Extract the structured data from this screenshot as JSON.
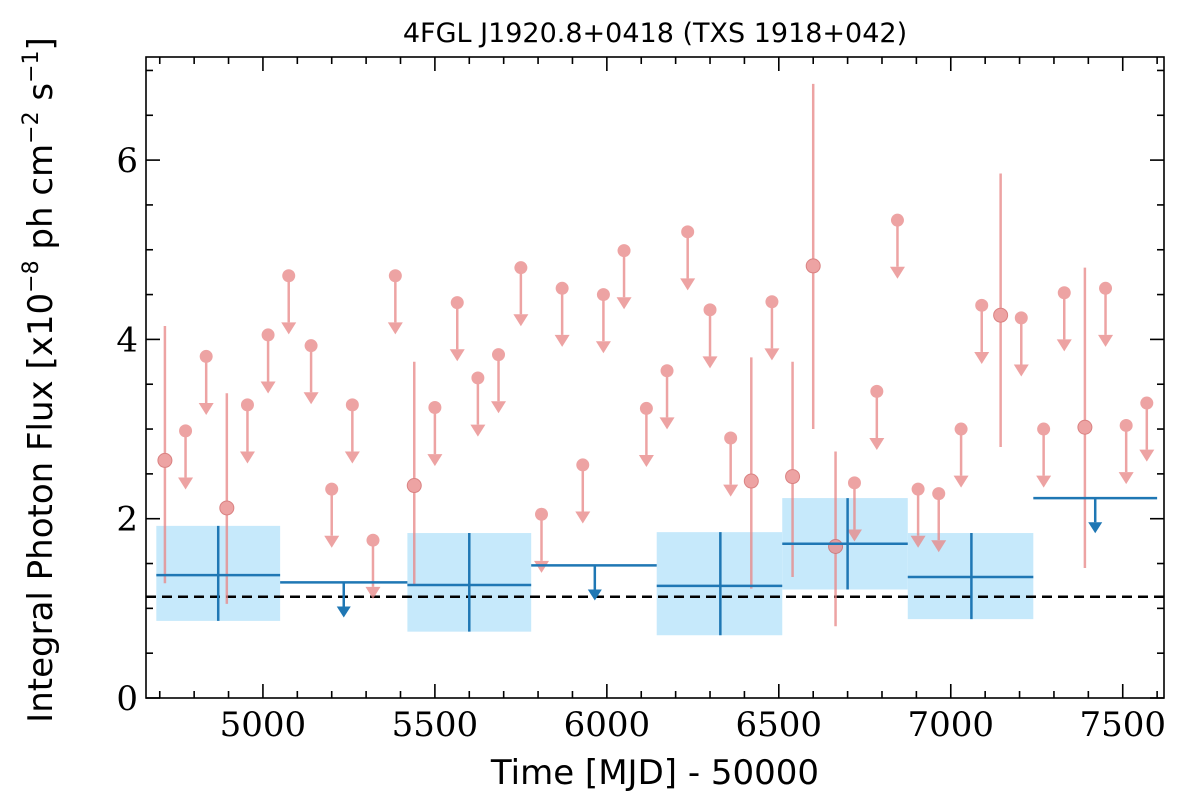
{
  "chart_data": {
    "type": "scatter",
    "title": "4FGL J1920.8+0418 (TXS 1918+042)",
    "xlabel": "Time [MJD] - 50000",
    "ylabel": "Integral Photon Flux [x10^-8 ph cm^-2 s^-1]",
    "ylabel_parts": {
      "pre": "Integral Photon Flux [x10",
      "exp1": "−8",
      "mid": " ph cm",
      "exp2": "−2",
      "mid2": " s",
      "exp3": "−1",
      "post": "]"
    },
    "xlim": [
      4660,
      7620
    ],
    "ylim": [
      0,
      7.15
    ],
    "xticks": [
      5000,
      5500,
      6000,
      6500,
      7000,
      7500
    ],
    "xtick_labels": [
      "5000",
      "5500",
      "6000",
      "6500",
      "7000",
      "7500"
    ],
    "yticks": [
      0,
      2,
      4,
      6
    ],
    "ytick_labels": [
      "0",
      "2",
      "4",
      "6"
    ],
    "mean_flux": 1.13,
    "colors": {
      "short_bins": "#e88a8a",
      "long_bins": "#1f77b4",
      "long_bin_error_box": "#c6e9fb",
      "mean_line": "#000000"
    },
    "short_bin_detections": [
      {
        "x": 4715,
        "y": 2.65,
        "ylo": 1.28,
        "yhi": 4.15
      },
      {
        "x": 4895,
        "y": 2.12,
        "ylo": 1.05,
        "yhi": 3.4
      },
      {
        "x": 5440,
        "y": 2.37,
        "ylo": 1.25,
        "yhi": 3.75
      },
      {
        "x": 6420,
        "y": 2.42,
        "ylo": 1.22,
        "yhi": 3.8
      },
      {
        "x": 6540,
        "y": 2.47,
        "ylo": 1.35,
        "yhi": 3.75
      },
      {
        "x": 6600,
        "y": 4.82,
        "ylo": 3.0,
        "yhi": 6.85
      },
      {
        "x": 6665,
        "y": 1.69,
        "ylo": 0.8,
        "yhi": 2.75
      },
      {
        "x": 7145,
        "y": 4.27,
        "ylo": 2.8,
        "yhi": 5.85
      },
      {
        "x": 7390,
        "y": 3.02,
        "ylo": 1.45,
        "yhi": 4.8
      }
    ],
    "short_bin_upper_limits": [
      {
        "x": 4775,
        "y": 2.98
      },
      {
        "x": 4835,
        "y": 3.81
      },
      {
        "x": 4955,
        "y": 3.27
      },
      {
        "x": 5015,
        "y": 4.05
      },
      {
        "x": 5075,
        "y": 4.71
      },
      {
        "x": 5140,
        "y": 3.93
      },
      {
        "x": 5200,
        "y": 2.33
      },
      {
        "x": 5260,
        "y": 3.27
      },
      {
        "x": 5320,
        "y": 1.76
      },
      {
        "x": 5385,
        "y": 4.71
      },
      {
        "x": 5500,
        "y": 3.24
      },
      {
        "x": 5565,
        "y": 4.41
      },
      {
        "x": 5625,
        "y": 3.57
      },
      {
        "x": 5685,
        "y": 3.83
      },
      {
        "x": 5750,
        "y": 4.8
      },
      {
        "x": 5810,
        "y": 2.05
      },
      {
        "x": 5870,
        "y": 4.57
      },
      {
        "x": 5930,
        "y": 2.6
      },
      {
        "x": 5990,
        "y": 4.5
      },
      {
        "x": 6050,
        "y": 4.99
      },
      {
        "x": 6115,
        "y": 3.23
      },
      {
        "x": 6175,
        "y": 3.65
      },
      {
        "x": 6235,
        "y": 5.2
      },
      {
        "x": 6300,
        "y": 4.33
      },
      {
        "x": 6360,
        "y": 2.9
      },
      {
        "x": 6480,
        "y": 4.42
      },
      {
        "x": 6720,
        "y": 2.4
      },
      {
        "x": 6785,
        "y": 3.42
      },
      {
        "x": 6845,
        "y": 5.33
      },
      {
        "x": 6905,
        "y": 2.33
      },
      {
        "x": 6965,
        "y": 2.28
      },
      {
        "x": 7030,
        "y": 3.0
      },
      {
        "x": 7090,
        "y": 4.38
      },
      {
        "x": 7205,
        "y": 4.24
      },
      {
        "x": 7270,
        "y": 3.0
      },
      {
        "x": 7330,
        "y": 4.52
      },
      {
        "x": 7450,
        "y": 4.57
      },
      {
        "x": 7510,
        "y": 3.04
      },
      {
        "x": 7570,
        "y": 3.29
      }
    ],
    "long_bin_detections": [
      {
        "x": 4870,
        "xlo": 4690,
        "xhi": 5050,
        "y": 1.37,
        "ylo": 0.86,
        "yhi": 1.92
      },
      {
        "x": 5600,
        "xlo": 5420,
        "xhi": 5780,
        "y": 1.26,
        "ylo": 0.74,
        "yhi": 1.84
      },
      {
        "x": 6330,
        "xlo": 6145,
        "xhi": 6510,
        "y": 1.25,
        "ylo": 0.7,
        "yhi": 1.85
      },
      {
        "x": 6700,
        "xlo": 6510,
        "xhi": 6875,
        "y": 1.72,
        "ylo": 1.21,
        "yhi": 2.23
      },
      {
        "x": 7060,
        "xlo": 6875,
        "xhi": 7240,
        "y": 1.35,
        "ylo": 0.88,
        "yhi": 1.84
      }
    ],
    "long_bin_upper_limits": [
      {
        "x": 5235,
        "xlo": 5050,
        "xhi": 5420,
        "y": 1.29
      },
      {
        "x": 5965,
        "xlo": 5780,
        "xhi": 6145,
        "y": 1.48
      },
      {
        "x": 7420,
        "xlo": 7240,
        "xhi": 7600,
        "y": 2.23
      }
    ]
  }
}
